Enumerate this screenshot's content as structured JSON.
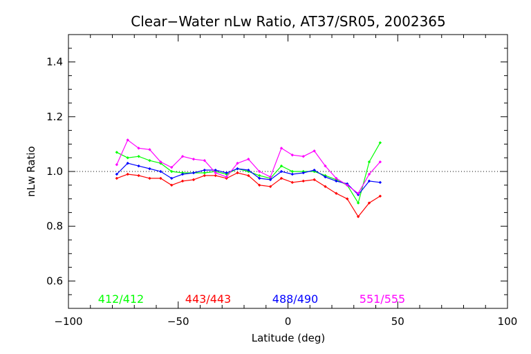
{
  "chart_data": {
    "type": "line",
    "title": "Clear−Water nLw Ratio, AT37/SR05, 2002365",
    "xlabel": "Latitude (deg)",
    "ylabel": "nLw Ratio",
    "xlim": [
      -100,
      100
    ],
    "ylim": [
      0.5,
      1.5
    ],
    "xticks": [
      -100,
      -50,
      0,
      50,
      100
    ],
    "xtick_labels": [
      "−100",
      "−50",
      "0",
      "50",
      "100"
    ],
    "yticks": [
      0.6,
      0.8,
      1.0,
      1.2,
      1.4
    ],
    "ytick_labels": [
      "0.6",
      "0.8",
      "1.0",
      "1.2",
      "1.4"
    ],
    "reference_line": 1.0,
    "grid": false,
    "legend_position": "bottom",
    "x": [
      -78,
      -73,
      -68,
      -63,
      -58,
      -53,
      -48,
      -43,
      -38,
      -33,
      -28,
      -23,
      -18,
      -13,
      -8,
      -3,
      2,
      7,
      12,
      17,
      22,
      27,
      32,
      37,
      42
    ],
    "series": [
      {
        "name": "412/412",
        "color": "#00ff00",
        "values": [
          1.07,
          1.05,
          1.055,
          1.04,
          1.03,
          1.0,
          0.995,
          0.995,
          0.995,
          1.0,
          0.99,
          1.01,
          1.0,
          0.985,
          0.975,
          1.02,
          1.0,
          1.0,
          1.0,
          0.985,
          0.97,
          0.95,
          0.885,
          1.035,
          1.105
        ]
      },
      {
        "name": "443/443",
        "color": "#ff0000",
        "values": [
          0.975,
          0.99,
          0.985,
          0.975,
          0.975,
          0.95,
          0.965,
          0.97,
          0.985,
          0.985,
          0.975,
          0.995,
          0.985,
          0.95,
          0.945,
          0.975,
          0.96,
          0.965,
          0.97,
          0.945,
          0.92,
          0.9,
          0.835,
          0.885,
          0.91
        ]
      },
      {
        "name": "488/490",
        "color": "#0000ff",
        "values": [
          0.99,
          1.03,
          1.02,
          1.01,
          1.0,
          0.975,
          0.99,
          0.995,
          1.005,
          1.005,
          0.995,
          1.01,
          1.005,
          0.975,
          0.97,
          1.0,
          0.99,
          0.995,
          1.005,
          0.98,
          0.965,
          0.955,
          0.915,
          0.965,
          0.96
        ]
      },
      {
        "name": "551/555",
        "color": "#ff00ff",
        "values": [
          1.025,
          1.115,
          1.085,
          1.08,
          1.035,
          1.015,
          1.055,
          1.045,
          1.04,
          0.995,
          0.98,
          1.03,
          1.045,
          1.0,
          0.98,
          1.085,
          1.06,
          1.055,
          1.075,
          1.02,
          0.975,
          0.95,
          0.92,
          0.99,
          1.035
        ]
      }
    ]
  }
}
